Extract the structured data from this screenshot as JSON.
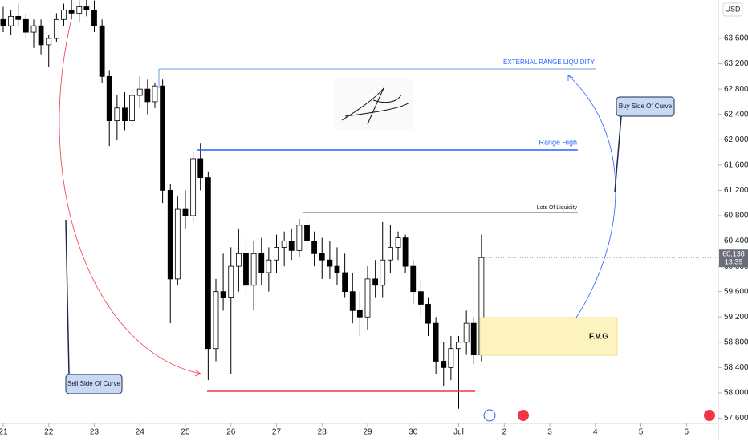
{
  "chart_data": {
    "type": "candlestick",
    "currency": "USD",
    "x": [
      21,
      21.17,
      21.33,
      21.5,
      21.67,
      21.83,
      22,
      22.17,
      22.33,
      22.5,
      22.67,
      22.83,
      23,
      23.17,
      23.33,
      23.5,
      23.67,
      23.83,
      24,
      24.17,
      24.33,
      24.5,
      24.67,
      24.83,
      25,
      25.17,
      25.33,
      25.5,
      25.67,
      25.83,
      26,
      26.17,
      26.33,
      26.5,
      26.67,
      26.83,
      27,
      27.17,
      27.33,
      27.5,
      27.67,
      27.83,
      28,
      28.17,
      28.33,
      28.5,
      28.67,
      28.83,
      29,
      29.17,
      29.33,
      29.5,
      29.67,
      29.83,
      30,
      30.17,
      30.33,
      30.5,
      30.67,
      30.83,
      31,
      31.17,
      31.33,
      31.5
    ],
    "open": [
      63900,
      63800,
      63950,
      63900,
      63700,
      63800,
      63500,
      63600,
      63900,
      64050,
      64000,
      64100,
      64050,
      63800,
      63000,
      62300,
      62500,
      62300,
      62700,
      62800,
      62600,
      62850,
      61200,
      59800,
      60900,
      60800,
      61700,
      61400,
      58700,
      59600,
      59500,
      60000,
      60200,
      59700,
      60200,
      59900,
      60100,
      60300,
      60400,
      60250,
      60650,
      60400,
      60200,
      60100,
      60000,
      59900,
      59600,
      59300,
      59200,
      59800,
      59700,
      60100,
      60300,
      60450,
      60000,
      59600,
      59400,
      59100,
      58500,
      58400,
      58700,
      58800,
      59100,
      58600
    ],
    "high": [
      64100,
      64050,
      64150,
      64000,
      63900,
      63900,
      63650,
      64000,
      64150,
      64250,
      64200,
      64250,
      64200,
      63900,
      63100,
      62700,
      62750,
      62800,
      63000,
      62950,
      62900,
      62950,
      61300,
      61100,
      61200,
      61800,
      61950,
      61500,
      59800,
      60200,
      60300,
      60600,
      60500,
      60400,
      60450,
      60300,
      60500,
      60550,
      60600,
      60750,
      60850,
      60550,
      60450,
      60400,
      60300,
      60200,
      59900,
      59600,
      60000,
      60100,
      60700,
      60650,
      60550,
      60500,
      60100,
      59800,
      59500,
      59200,
      58800,
      58900,
      58900,
      59300,
      59200,
      60500
    ],
    "low": [
      63700,
      63650,
      63800,
      63600,
      63450,
      63350,
      63150,
      63550,
      63800,
      63900,
      63850,
      63950,
      63700,
      62900,
      61900,
      62000,
      62150,
      62200,
      62500,
      62400,
      62500,
      61000,
      59100,
      59700,
      60600,
      60700,
      61200,
      58200,
      58500,
      59300,
      58300,
      59600,
      59500,
      59300,
      59700,
      59600,
      59900,
      60000,
      60100,
      60150,
      60300,
      60000,
      59800,
      59800,
      59700,
      59500,
      59100,
      58900,
      59000,
      59500,
      59500,
      59900,
      60100,
      59900,
      59400,
      59200,
      58900,
      58300,
      58100,
      58200,
      57750,
      58600,
      58450,
      58500
    ],
    "close": [
      63800,
      63950,
      63900,
      63700,
      63800,
      63500,
      63600,
      63900,
      64050,
      64000,
      64100,
      64050,
      63800,
      63000,
      62300,
      62500,
      62300,
      62700,
      62800,
      62600,
      62850,
      61200,
      59800,
      60900,
      60800,
      61700,
      61400,
      58700,
      59600,
      59500,
      60000,
      60200,
      59700,
      60200,
      59900,
      60100,
      60300,
      60400,
      60250,
      60650,
      60400,
      60200,
      60100,
      60000,
      59900,
      59600,
      59300,
      59200,
      59800,
      59700,
      60100,
      60300,
      60450,
      60000,
      59600,
      59400,
      59100,
      58500,
      58400,
      58700,
      58800,
      59100,
      58600,
      60138
    ],
    "up_color": "#ffffff",
    "down_color": "#000000",
    "wick_color": "#000000",
    "ylim": [
      57518,
      64208
    ],
    "yticks": [
      {
        "value": 57600,
        "label": "57,600"
      },
      {
        "value": 58000,
        "label": "58,000"
      },
      {
        "value": 58400,
        "label": "58,400"
      },
      {
        "value": 58800,
        "label": "58,800"
      },
      {
        "value": 59200,
        "label": "59,200"
      },
      {
        "value": 59600,
        "label": "59,600"
      },
      {
        "value": 60000,
        "label": "60,000"
      },
      {
        "value": 60400,
        "label": "60,400"
      },
      {
        "value": 60800,
        "label": "60,800"
      },
      {
        "value": 61200,
        "label": "61,200"
      },
      {
        "value": 61600,
        "label": "61,600"
      },
      {
        "value": 62000,
        "label": "62,000"
      },
      {
        "value": 62400,
        "label": "62,400"
      },
      {
        "value": 62800,
        "label": "62,800"
      },
      {
        "value": 63200,
        "label": "63,200"
      },
      {
        "value": 63600,
        "label": "63,600"
      }
    ],
    "xlim": [
      20.93,
      36.7
    ],
    "xticks": [
      21,
      22,
      23,
      24,
      25,
      26,
      27,
      28,
      29,
      30,
      {
        "value": 31,
        "label": "Jul"
      },
      {
        "value": 32,
        "label": "2"
      },
      {
        "value": 33,
        "label": "3"
      },
      {
        "value": 34,
        "label": "4"
      },
      {
        "value": 35,
        "label": "5"
      },
      {
        "value": 36,
        "label": "6"
      }
    ],
    "last_price_label": "60,138",
    "countdown": "13:39",
    "annotations": {
      "external_range": "EXTERNAL RANGE LIQUIDITY",
      "range_high": "Range High",
      "lots_of_liquidity": "Lots Of Liquidity",
      "fvg": "F.V.G",
      "buy_side": "Buy Side Of Curve",
      "sell_side": "Sell Side Of Curve"
    }
  }
}
